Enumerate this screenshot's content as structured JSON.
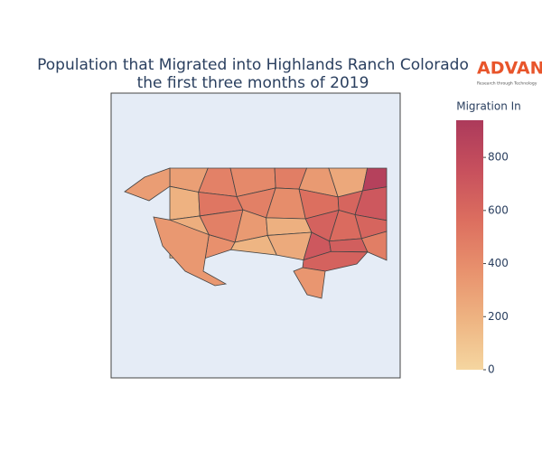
{
  "chart_data": {
    "type": "choropleth",
    "title": [
      "Population that Migrated into Highlands Ranch Colorado",
      "the first three months of 2019"
    ],
    "logo": {
      "name": "ADVAN",
      "tagline": "Research through Technology"
    },
    "colorbar_title": "Migration In",
    "values": [
      300,
      460,
      420,
      480,
      330,
      250,
      880,
      200,
      520,
      470,
      400,
      560,
      620,
      700,
      220,
      470,
      330,
      210,
      640,
      580,
      620,
      150,
      380,
      180,
      240,
      700,
      660,
      480,
      310,
      340,
      640,
      350
    ],
    "colorscale": [
      "#f5d6a0",
      "#eeb482",
      "#e8916d",
      "#dc6e5f",
      "#c7505d",
      "#ac3a5b"
    ],
    "zlim": [
      0,
      940
    ],
    "zticks": [
      0,
      200,
      400,
      600,
      800
    ]
  }
}
